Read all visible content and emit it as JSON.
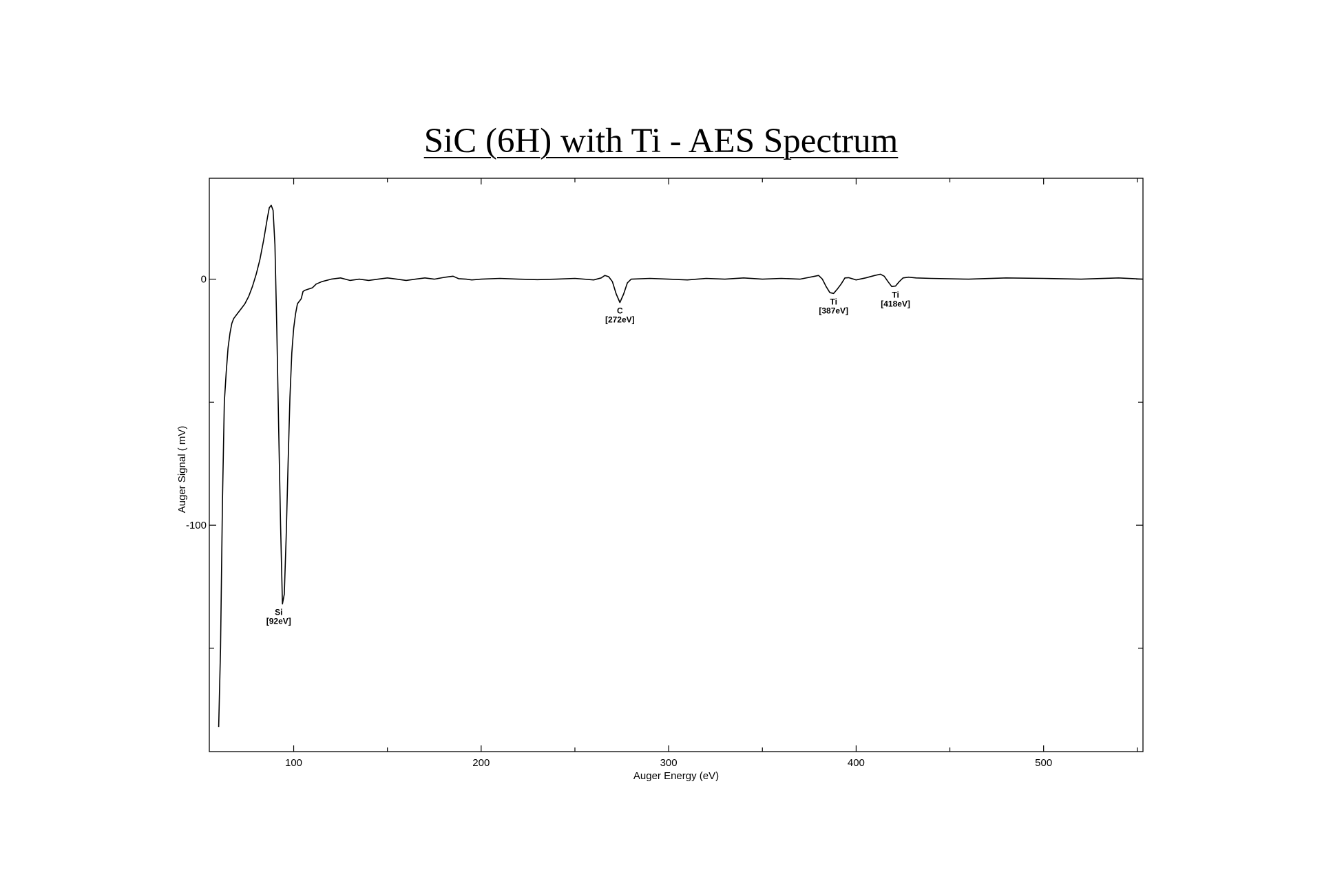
{
  "chart_data": {
    "type": "line",
    "title": "SiC (6H) with Ti - AES Spectrum",
    "xlabel": "Auger Energy (eV)",
    "ylabel": "Auger Signal ( mV)",
    "xlim": [
      55,
      553
    ],
    "ylim": [
      -192,
      41
    ],
    "x_ticks": [
      100,
      200,
      300,
      400,
      500
    ],
    "y_ticks": [
      0,
      -100
    ],
    "grid": false,
    "series": [
      {
        "x": [
          60,
          61,
          62,
          63,
          64,
          65,
          66,
          67,
          68,
          70,
          72,
          74,
          76,
          78,
          80,
          82,
          84,
          86,
          87,
          88,
          89,
          90,
          91,
          92,
          93,
          94,
          95,
          96,
          97,
          98,
          99,
          100,
          101,
          102,
          103,
          104,
          105,
          106,
          108,
          110,
          112,
          115,
          120,
          125,
          130,
          135,
          140,
          145,
          150,
          155,
          160,
          165,
          170,
          175,
          180,
          185,
          188,
          192,
          195,
          200,
          210,
          220,
          230,
          240,
          250,
          260,
          264,
          266,
          268,
          270,
          272,
          274,
          276,
          278,
          280,
          290,
          300,
          310,
          320,
          330,
          340,
          350,
          360,
          370,
          378,
          380,
          382,
          384,
          386,
          388,
          390,
          392,
          394,
          396,
          400,
          405,
          410,
          413,
          415,
          417,
          419,
          421,
          423,
          425,
          428,
          432,
          440,
          460,
          480,
          500,
          520,
          540,
          553
        ],
        "y": [
          -182,
          -150,
          -90,
          -50,
          -38,
          -28,
          -22,
          -18,
          -16,
          -14,
          -12,
          -10,
          -7,
          -3,
          2,
          8,
          16,
          25,
          29,
          30,
          28,
          14,
          -20,
          -60,
          -100,
          -132,
          -128,
          -105,
          -75,
          -48,
          -30,
          -20,
          -14,
          -10,
          -9,
          -8,
          -5,
          -4.5,
          -4,
          -3.5,
          -2,
          -1,
          0,
          0.5,
          -0.5,
          0,
          -0.5,
          0,
          0.5,
          0,
          -0.5,
          0,
          0.5,
          0,
          0.7,
          1.2,
          0.2,
          0,
          -0.3,
          0,
          0.3,
          0,
          -0.2,
          0,
          0.3,
          -0.3,
          0.5,
          1.5,
          1,
          -1,
          -6,
          -9.5,
          -6,
          -1.5,
          0,
          0.3,
          0,
          -0.3,
          0.3,
          0,
          0.5,
          0,
          0.3,
          0,
          1.2,
          1.5,
          0,
          -3,
          -5.5,
          -5.8,
          -4,
          -2,
          0.5,
          0.6,
          -0.3,
          0.5,
          1.5,
          2,
          1.2,
          -1,
          -3,
          -2.8,
          -1,
          0.5,
          0.8,
          0.5,
          0.3,
          0,
          0.5,
          0.3,
          0,
          0.5,
          0
        ]
      }
    ],
    "annotations": [
      {
        "element": "Si",
        "energy": "[92eV]",
        "x": 92,
        "y": -132
      },
      {
        "element": "C",
        "energy": "[272eV]",
        "x": 274,
        "y": -9.5
      },
      {
        "element": "Ti",
        "energy": "[387eV]",
        "x": 388,
        "y": -5.8
      },
      {
        "element": "Ti",
        "energy": "[418eV]",
        "x": 421,
        "y": -3
      }
    ]
  }
}
